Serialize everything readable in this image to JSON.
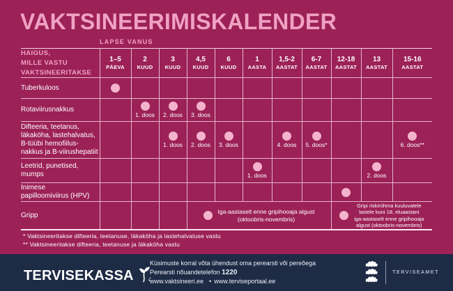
{
  "title": "VAKTSINEERIMISKALENDER",
  "colors": {
    "background": "#9C2157",
    "accent_pink": "#F0A2C2",
    "dose_dot_pink": "#F4B3CC",
    "grid_line": "#E5B7CE",
    "footer_navy": "#1E2B45",
    "text_white": "#FFFFFF"
  },
  "table": {
    "age_group_label": "LAPSE VANUS",
    "header_lines": [
      "HAIGUS,",
      "MILLE VASTU",
      "VAKTSINEERITAKSE"
    ],
    "columns": [
      {
        "value": "1–5",
        "unit": "PÄEVA"
      },
      {
        "value": "2",
        "unit": "KUUD"
      },
      {
        "value": "3",
        "unit": "KUUD"
      },
      {
        "value": "4,5",
        "unit": "KUUD"
      },
      {
        "value": "6",
        "unit": "KUUD"
      },
      {
        "value": "1",
        "unit": "AASTA"
      },
      {
        "value": "1,5-2",
        "unit": "AASTAT"
      },
      {
        "value": "6-7",
        "unit": "AASTAT"
      },
      {
        "value": "12-18",
        "unit": "AASTAT"
      },
      {
        "value": "13",
        "unit": "AASTAT"
      },
      {
        "value": "15-16",
        "unit": "AASTAT"
      }
    ],
    "rows": [
      {
        "disease": "Tuberkuloos",
        "disease_lines": [
          "Tuberkuloos"
        ],
        "cells": [
          {
            "dot": true
          },
          null,
          null,
          null,
          null,
          null,
          null,
          null,
          null,
          null,
          null
        ]
      },
      {
        "disease": "Rotaviirusnakkus",
        "disease_lines": [
          "Rotaviirusnakkus"
        ],
        "cells": [
          null,
          {
            "dot": true,
            "label": "1. doos"
          },
          {
            "dot": true,
            "label": "2. doos"
          },
          {
            "dot": true,
            "label": "3. doos"
          },
          null,
          null,
          null,
          null,
          null,
          null,
          null
        ]
      },
      {
        "disease": "Difteeria, teetanus, läkaköha, lastehalvatus, B-tüübi hemofiilusnakkus ja B-viirushepatiit",
        "disease_lines": [
          "Difteeria, teetanus,",
          "läkaköha, lastehalvatus,",
          "B-tüübi hemofiilus-",
          "nakkus ja B-viirushepatiit"
        ],
        "cells": [
          null,
          null,
          {
            "dot": true,
            "label": "1. doos"
          },
          {
            "dot": true,
            "label": "2. doos"
          },
          {
            "dot": true,
            "label": "3. doos"
          },
          null,
          {
            "dot": true,
            "label": "4. doos"
          },
          {
            "dot": true,
            "label": "5. doos*"
          },
          null,
          null,
          {
            "dot": true,
            "label": "6. doos**"
          }
        ]
      },
      {
        "disease": "Leetrid, punetised, mumps",
        "disease_lines": [
          "Leetrid, punetised,",
          "mumps"
        ],
        "cells": [
          null,
          null,
          null,
          null,
          null,
          {
            "dot": true,
            "label": "1. doos"
          },
          null,
          null,
          null,
          {
            "dot": true,
            "label": "2. doos"
          },
          null
        ]
      },
      {
        "disease": "Inimese papilloomiviirus (HPV)",
        "disease_lines": [
          "Inimese",
          "papilloomiviirus (HPV)"
        ],
        "cells": [
          null,
          null,
          null,
          null,
          null,
          null,
          null,
          null,
          {
            "dot": true
          },
          null,
          null
        ]
      },
      {
        "disease": "Gripp",
        "disease_lines": [
          "Gripp"
        ],
        "cells": [
          null,
          null,
          null,
          {
            "dot": true,
            "span": 5,
            "note_lines": [
              "Iga-aastaselt enne gripihooaja algust",
              "(oktoobris-novembris)"
            ]
          },
          {
            "dot": true,
            "span": 3,
            "note_lines": [
              "Gripi riskirühma kuuluvatele",
              "lastele kuni 18. eluaastani",
              "iga-aastaselt enne gripihooaja",
              "algust (oktoobris-novembris)"
            ]
          }
        ]
      }
    ]
  },
  "footnotes": [
    "* Vaktsineeritakse difteeria, teetanuse, läkaköha ja lastehalvatuse vastu",
    "** Vaktsineeritakse difteeria, teetanuse ja läkaköha vastu"
  ],
  "footer": {
    "brand": "TERVISEKASSA",
    "contact_line1": "Küsimuste korral võta ühendust oma perearsti või pereõega",
    "contact_line2_prefix": "Perearsti nõuandetelefon ",
    "phone": "1220",
    "link1": "www.vaktsineeri.ee",
    "link_separator": "•",
    "link2": "www.terviseportaal.ee",
    "agency": "TERVISEAMET"
  }
}
